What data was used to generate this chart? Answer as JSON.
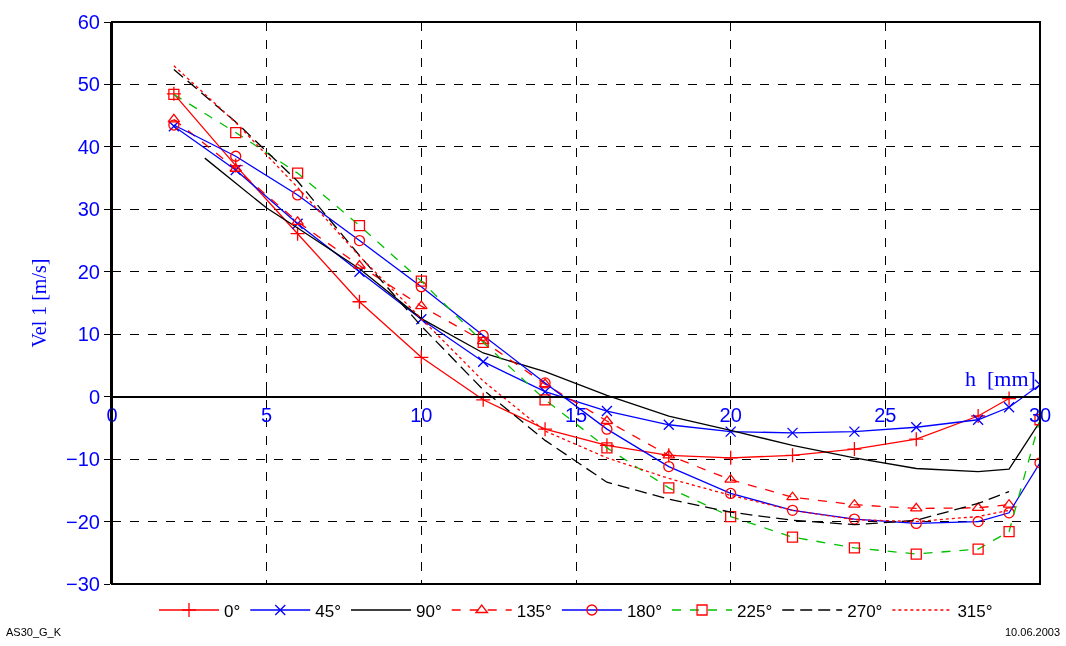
{
  "chart_data": {
    "type": "line",
    "xlabel": "h  [mm]",
    "ylabel": "Vel 1 [m/s]",
    "xlim": [
      0,
      30
    ],
    "xticks": [
      0,
      5,
      10,
      15,
      20,
      25,
      30
    ],
    "ylim": [
      -30,
      60
    ],
    "yticks": [
      -30,
      -20,
      -10,
      0,
      10,
      20,
      30,
      40,
      50,
      60
    ],
    "grid": true,
    "legend": "bottom",
    "annotations": [
      "AS30_G_K",
      "10.06.2003"
    ],
    "series": [
      {
        "name": "0°",
        "color": "#ff0000",
        "marker": "cross",
        "line_style": "solid",
        "x": [
          2,
          4,
          6,
          8,
          10,
          12,
          14,
          16,
          18,
          20,
          22,
          24,
          26,
          28,
          29
        ],
        "values": [
          48.5,
          37,
          26.1,
          15.2,
          6.3,
          -0.5,
          -5.2,
          -7.8,
          -9.4,
          -9.8,
          -9.4,
          -8.4,
          -6.8,
          -3.1,
          -0.3
        ]
      },
      {
        "name": "45°",
        "color": "#0000ff",
        "marker": "x",
        "line_style": "solid",
        "x": [
          2,
          4,
          6,
          8,
          10,
          12,
          14,
          16,
          18,
          20,
          22,
          24,
          26,
          28,
          29,
          30
        ],
        "values": [
          43.3,
          36.3,
          27.7,
          20,
          12.4,
          5.6,
          0.8,
          -2.3,
          -4.5,
          -5.6,
          -5.8,
          -5.6,
          -4.9,
          -3.7,
          -1.7,
          1.9
        ]
      },
      {
        "name": "90°",
        "color": "#000000",
        "marker": "none",
        "line_style": "solid",
        "x": [
          3,
          5,
          6,
          8,
          10,
          12,
          14,
          16,
          18,
          20,
          22,
          24,
          26,
          28,
          29,
          30
        ],
        "values": [
          38.2,
          30.2,
          27,
          20.5,
          12.5,
          7,
          4,
          0.2,
          -3.1,
          -5.4,
          -7.8,
          -9.8,
          -11.5,
          -12,
          -11.6,
          -4
        ]
      },
      {
        "name": "135°",
        "color": "#ff0000",
        "marker": "triangle",
        "line_style": "dashed",
        "x": [
          2,
          4,
          6,
          8,
          10,
          12,
          14,
          16,
          18,
          20,
          22,
          24,
          26,
          28,
          29
        ],
        "values": [
          44.4,
          36.5,
          28,
          21,
          14.5,
          8.9,
          2,
          -3.9,
          -9.4,
          -13.3,
          -16.1,
          -17.3,
          -17.9,
          -17.8,
          -17.3
        ]
      },
      {
        "name": "180°",
        "color": "#0000ff",
        "marker": "circle",
        "line_style": "solid",
        "colors": [
          "#ff0000",
          "#ff0000",
          "#ff0000",
          "#ff0000",
          "#ff0000",
          "#ff0000",
          "#ff0000",
          "#ff0000",
          "#ff0000",
          "#ff0000",
          "#ff0000",
          "#ff0000",
          "#ff0000",
          "#ff0000",
          "#ff0000",
          "#ff0000"
        ],
        "x": [
          2,
          4,
          6,
          8,
          10,
          12,
          14,
          16,
          18,
          20,
          22,
          24,
          26,
          28,
          29,
          30
        ],
        "values": [
          43.5,
          38.5,
          32.3,
          25,
          17.6,
          9.8,
          2.2,
          -5.2,
          -11.2,
          -15.5,
          -18.2,
          -19.6,
          -20.3,
          -20,
          -18.6,
          -10.6
        ]
      },
      {
        "name": "225°",
        "color": "#00c000",
        "marker": "square",
        "line_style": "dashed",
        "colors": [
          "#ff0000",
          "#ff0000",
          "#ff0000",
          "#ff0000",
          "#ff0000",
          "#ff0000",
          "#ff0000",
          "#ff0000",
          "#ff0000",
          "#ff0000",
          "#ff0000",
          "#ff0000",
          "#ff0000",
          "#ff0000",
          "#ff0000",
          "#ff0000"
        ],
        "x": [
          2,
          4,
          6,
          8,
          10,
          12,
          14,
          16,
          18,
          20,
          22,
          24,
          26,
          28,
          29,
          30
        ],
        "values": [
          48.4,
          42.3,
          35.8,
          27.4,
          18.5,
          8.7,
          -0.5,
          -8.2,
          -14.6,
          -19.2,
          -22.5,
          -24.2,
          -25.2,
          -24.4,
          -21.6,
          -3.7
        ]
      },
      {
        "name": "270°",
        "color": "#000000",
        "marker": "none",
        "line_style": "longdash",
        "x": [
          2,
          4,
          6,
          8,
          10,
          12,
          14,
          16,
          18,
          20,
          22,
          24,
          26,
          28,
          29
        ],
        "values": [
          52.4,
          44,
          34.5,
          22.6,
          11.3,
          1.1,
          -7,
          -13.7,
          -16.4,
          -18.5,
          -19.8,
          -20.5,
          -19.8,
          -17.1,
          -15.2
        ]
      },
      {
        "name": "315°",
        "color": "#ff0000",
        "marker": "none",
        "line_style": "dotted",
        "x": [
          2,
          4,
          6,
          8,
          10,
          12,
          14,
          16,
          18,
          20,
          22,
          24,
          26,
          28,
          29
        ],
        "values": [
          53,
          43.9,
          33.5,
          22.5,
          12.5,
          2.5,
          -5.5,
          -9.8,
          -13.1,
          -15.8,
          -18.2,
          -19.7,
          -20,
          -19.2,
          -18.2
        ]
      }
    ]
  }
}
